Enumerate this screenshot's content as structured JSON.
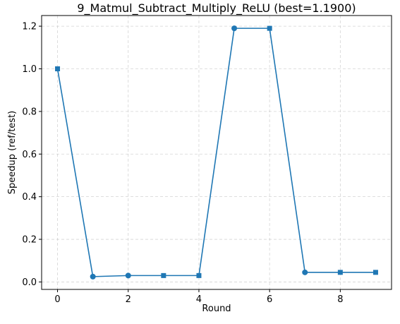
{
  "chart_data": {
    "type": "line",
    "title": "9_Matmul_Subtract_Multiply_ReLU (best=1.1900)",
    "xlabel": "Round",
    "ylabel": "Speedup (ref/test)",
    "xlim": [
      -0.45,
      9.45
    ],
    "ylim": [
      -0.035,
      1.25
    ],
    "xticks": [
      0,
      2,
      4,
      6,
      8
    ],
    "xtick_labels": [
      "0",
      "2",
      "4",
      "6",
      "8"
    ],
    "yticks": [
      0.0,
      0.2,
      0.4,
      0.6,
      0.8,
      1.0,
      1.2
    ],
    "ytick_labels": [
      "0.0",
      "0.2",
      "0.4",
      "0.6",
      "0.8",
      "1.0",
      "1.2"
    ],
    "grid": true,
    "series": [
      {
        "color": "#1f77b4",
        "x": [
          0,
          1,
          2,
          3,
          4,
          5,
          6,
          7,
          8,
          9
        ],
        "y": [
          1.0,
          0.025,
          0.03,
          0.03,
          0.03,
          1.19,
          1.19,
          0.045,
          0.045,
          0.045
        ],
        "markers": [
          "square",
          "circle",
          "circle",
          "square",
          "square",
          "circle",
          "square",
          "circle",
          "square",
          "square"
        ]
      }
    ]
  }
}
